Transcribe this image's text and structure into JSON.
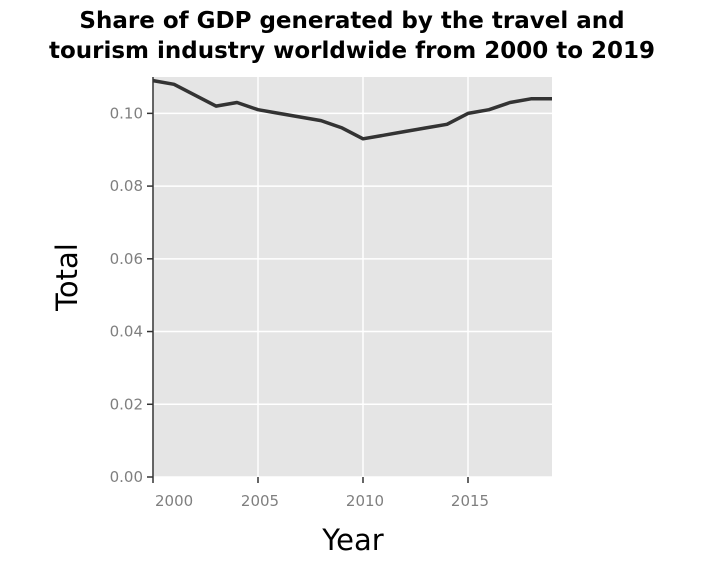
{
  "chart_data": {
    "type": "line",
    "title_lines": [
      "Share of GDP generated by the travel and",
      "tourism industry worldwide from 2000 to 2019"
    ],
    "xlabel": "Year",
    "ylabel": "Total",
    "xlim": [
      2000,
      2019
    ],
    "ylim": [
      0,
      0.11
    ],
    "xticks": [
      2000,
      2005,
      2010,
      2015
    ],
    "xtick_labels": [
      "2000",
      "2005",
      "2010",
      "2015"
    ],
    "yticks": [
      0,
      0.02,
      0.04,
      0.06,
      0.08,
      0.1
    ],
    "ytick_labels": [
      "0.00",
      "0.02",
      "0.04",
      "0.06",
      "0.08",
      "0.10"
    ],
    "grid": true,
    "x": [
      2000,
      2001,
      2002,
      2003,
      2004,
      2005,
      2006,
      2007,
      2008,
      2009,
      2010,
      2011,
      2012,
      2013,
      2014,
      2015,
      2016,
      2017,
      2018,
      2019
    ],
    "series": [
      {
        "values": [
          0.109,
          0.108,
          0.105,
          0.102,
          0.103,
          0.101,
          0.1,
          0.099,
          0.098,
          0.096,
          0.093,
          0.094,
          0.095,
          0.096,
          0.097,
          0.1,
          0.101,
          0.103,
          0.104,
          0.104
        ],
        "color": "#333333"
      }
    ],
    "colors": {
      "plot_background": "#e5e5e5",
      "grid": "#ffffff",
      "tick_label": "#7f7f7f"
    }
  }
}
